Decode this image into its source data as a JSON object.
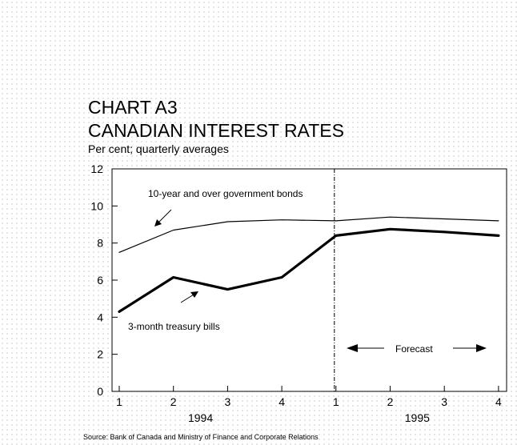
{
  "chart_data": {
    "type": "line",
    "title_line1": "CHART A3",
    "title_line2": "CANADIAN INTEREST RATES",
    "subtitle": "Per cent; quarterly averages",
    "source": "Source: Bank of Canada and Ministry of Finance and Corporate Relations",
    "categories": [
      "1",
      "2",
      "3",
      "4",
      "1",
      "2",
      "3",
      "4"
    ],
    "year_labels": [
      "1994",
      "1995"
    ],
    "ylim": [
      0,
      12
    ],
    "yticks": [
      0,
      2,
      4,
      6,
      8,
      10,
      12
    ],
    "grid": false,
    "series": [
      {
        "name": "10-year and over government bonds",
        "values": [
          7.5,
          8.7,
          9.15,
          9.25,
          9.2,
          9.4,
          9.3,
          9.2
        ]
      },
      {
        "name": "3-month treasury bills",
        "values": [
          4.3,
          6.15,
          5.5,
          6.15,
          8.4,
          8.75,
          8.6,
          8.4
        ]
      }
    ],
    "forecast_label": "Forecast",
    "forecast_start_index": 4
  }
}
